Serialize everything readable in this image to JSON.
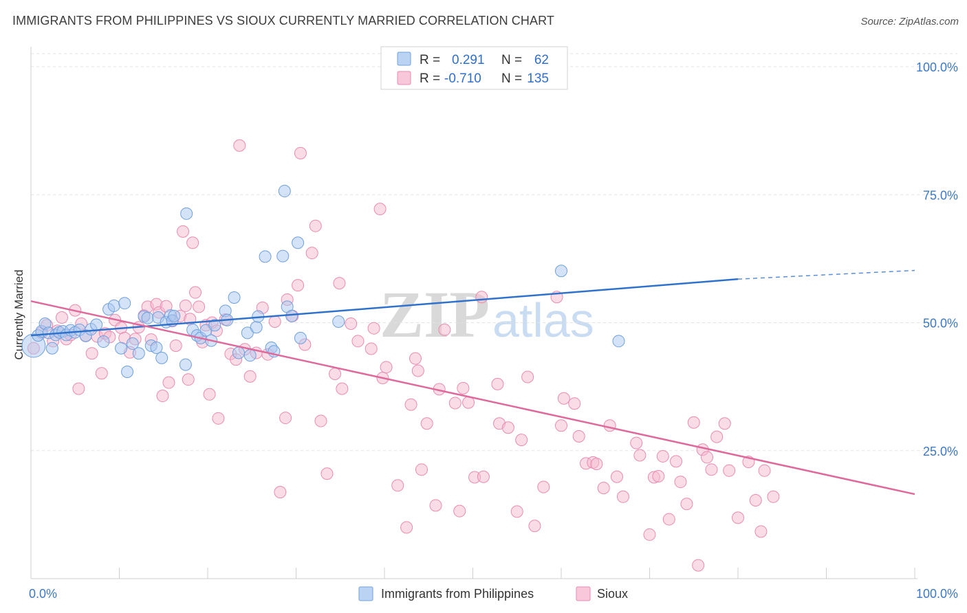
{
  "header": {
    "title": "IMMIGRANTS FROM PHILIPPINES VS SIOUX CURRENTLY MARRIED CORRELATION CHART",
    "source": "Source: ZipAtlas.com"
  },
  "watermark": {
    "zip": "ZIP",
    "atlas": "atlas"
  },
  "legend_top": {
    "rows": [
      {
        "r_label": "R =",
        "r_value": "0.291",
        "n_label": "N =",
        "n_value": "62",
        "color": "#a9c8f0"
      },
      {
        "r_label": "R =",
        "r_value": "-0.710",
        "n_label": "N =",
        "n_value": "135",
        "color": "#f6b9cf"
      }
    ]
  },
  "legend_bottom": {
    "items": [
      {
        "label": "Immigrants from Philippines",
        "color": "#a9c8f0"
      },
      {
        "label": "Sioux",
        "color": "#f6b9cf"
      }
    ]
  },
  "chart_data": {
    "type": "scatter",
    "title": "IMMIGRANTS FROM PHILIPPINES VS SIOUX CURRENTLY MARRIED CORRELATION CHART",
    "xlabel": "",
    "ylabel": "Currently Married",
    "xlim": [
      0,
      100
    ],
    "ylim": [
      0,
      105
    ],
    "x_tick_labels": [
      "0.0%",
      "100.0%"
    ],
    "y_ticks": [
      25,
      50,
      75,
      100
    ],
    "y_tick_labels": [
      "25.0%",
      "50.0%",
      "75.0%",
      "100.0%"
    ],
    "grid": true,
    "legend_position": "top-center",
    "series": [
      {
        "name": "Immigrants from Philippines",
        "color": "#a9c8f0",
        "stroke": "#6fa0de",
        "trend": {
          "x": [
            0,
            80
          ],
          "y": [
            47.5,
            58.5
          ],
          "dashed_to": [
            100,
            60.2
          ],
          "color": "#2f72cc"
        },
        "points": [
          [
            0.3,
            45.5
          ],
          [
            0.8,
            47.5
          ],
          [
            1.2,
            48.3
          ],
          [
            1.6,
            49.8
          ],
          [
            2.0,
            48.0
          ],
          [
            2.4,
            45.0
          ],
          [
            2.8,
            47.6
          ],
          [
            3.2,
            48.1
          ],
          [
            3.6,
            48.3
          ],
          [
            4.0,
            47.6
          ],
          [
            4.5,
            48.5
          ],
          [
            5.0,
            48.1
          ],
          [
            5.5,
            48.6
          ],
          [
            6.2,
            47.4
          ],
          [
            6.8,
            48.7
          ],
          [
            7.4,
            49.6
          ],
          [
            8.2,
            46.3
          ],
          [
            8.8,
            52.6
          ],
          [
            9.4,
            53.3
          ],
          [
            10.2,
            45.0
          ],
          [
            10.6,
            53.8
          ],
          [
            10.9,
            40.4
          ],
          [
            11.5,
            45.9
          ],
          [
            12.2,
            44.0
          ],
          [
            12.8,
            51.2
          ],
          [
            13.2,
            50.9
          ],
          [
            13.6,
            45.5
          ],
          [
            14.2,
            45.1
          ],
          [
            14.8,
            43.1
          ],
          [
            14.4,
            51.0
          ],
          [
            15.3,
            50.1
          ],
          [
            15.8,
            51.4
          ],
          [
            16.0,
            50.4
          ],
          [
            16.2,
            51.3
          ],
          [
            17.5,
            41.8
          ],
          [
            17.6,
            71.3
          ],
          [
            18.3,
            48.6
          ],
          [
            18.8,
            47.5
          ],
          [
            19.2,
            47.0
          ],
          [
            19.8,
            48.5
          ],
          [
            20.4,
            46.5
          ],
          [
            20.8,
            49.5
          ],
          [
            22.0,
            52.3
          ],
          [
            22.2,
            50.5
          ],
          [
            23.0,
            54.9
          ],
          [
            23.5,
            44.1
          ],
          [
            24.5,
            48.0
          ],
          [
            24.8,
            43.6
          ],
          [
            25.5,
            49.1
          ],
          [
            25.7,
            51.2
          ],
          [
            26.5,
            62.9
          ],
          [
            27.2,
            45.1
          ],
          [
            27.5,
            44.4
          ],
          [
            28.5,
            63.0
          ],
          [
            28.7,
            75.7
          ],
          [
            29.0,
            53.1
          ],
          [
            29.5,
            51.3
          ],
          [
            30.2,
            65.6
          ],
          [
            30.5,
            47.0
          ],
          [
            34.8,
            50.2
          ],
          [
            60.0,
            60.1
          ],
          [
            66.5,
            46.4
          ]
        ],
        "big_points": [
          [
            0.3,
            45.5
          ]
        ]
      },
      {
        "name": "Sioux",
        "color": "#f6b9cf",
        "stroke": "#e98bb0",
        "trend": {
          "x": [
            0,
            100
          ],
          "y": [
            54.2,
            16.5
          ],
          "color": "#e0699b"
        },
        "points": [
          [
            0.3,
            45.0
          ],
          [
            1.2,
            48.0
          ],
          [
            1.8,
            49.5
          ],
          [
            2.5,
            46.4
          ],
          [
            3.0,
            48.4
          ],
          [
            3.5,
            51.0
          ],
          [
            4.0,
            46.8
          ],
          [
            4.5,
            47.6
          ],
          [
            5.0,
            52.4
          ],
          [
            5.4,
            37.1
          ],
          [
            5.7,
            49.8
          ],
          [
            6.2,
            47.5
          ],
          [
            6.9,
            44.0
          ],
          [
            7.5,
            47.3
          ],
          [
            8.0,
            40.1
          ],
          [
            8.4,
            47.9
          ],
          [
            8.9,
            47.2
          ],
          [
            9.5,
            50.5
          ],
          [
            10.2,
            49.0
          ],
          [
            10.6,
            47.0
          ],
          [
            11.2,
            44.2
          ],
          [
            11.8,
            46.8
          ],
          [
            12.2,
            49.1
          ],
          [
            12.8,
            51.4
          ],
          [
            13.2,
            53.1
          ],
          [
            13.6,
            46.7
          ],
          [
            14.2,
            53.6
          ],
          [
            14.5,
            52.0
          ],
          [
            14.9,
            35.7
          ],
          [
            15.3,
            53.2
          ],
          [
            15.6,
            38.3
          ],
          [
            16.0,
            50.3
          ],
          [
            16.4,
            45.5
          ],
          [
            16.9,
            51.3
          ],
          [
            17.2,
            67.8
          ],
          [
            17.5,
            53.3
          ],
          [
            17.8,
            38.9
          ],
          [
            18.0,
            50.7
          ],
          [
            18.3,
            65.6
          ],
          [
            18.6,
            55.9
          ],
          [
            19.0,
            53.1
          ],
          [
            19.4,
            46.2
          ],
          [
            19.8,
            49.5
          ],
          [
            20.2,
            36.0
          ],
          [
            20.5,
            50.0
          ],
          [
            21.0,
            48.4
          ],
          [
            21.2,
            31.3
          ],
          [
            22.0,
            50.6
          ],
          [
            22.6,
            43.9
          ],
          [
            23.2,
            42.8
          ],
          [
            23.6,
            84.6
          ],
          [
            24.2,
            44.8
          ],
          [
            24.8,
            39.5
          ],
          [
            25.5,
            44.1
          ],
          [
            26.2,
            52.9
          ],
          [
            26.8,
            43.8
          ],
          [
            27.6,
            50.2
          ],
          [
            28.2,
            16.9
          ],
          [
            28.8,
            31.4
          ],
          [
            29.0,
            54.5
          ],
          [
            29.6,
            51.3
          ],
          [
            30.2,
            57.3
          ],
          [
            30.5,
            83.1
          ],
          [
            31.0,
            45.7
          ],
          [
            31.8,
            63.6
          ],
          [
            32.2,
            68.9
          ],
          [
            32.8,
            30.8
          ],
          [
            33.5,
            20.5
          ],
          [
            34.4,
            40.0
          ],
          [
            34.9,
            57.7
          ],
          [
            35.2,
            37.1
          ],
          [
            36.2,
            49.8
          ],
          [
            37.0,
            46.4
          ],
          [
            38.5,
            44.9
          ],
          [
            38.8,
            48.9
          ],
          [
            39.5,
            72.2
          ],
          [
            39.8,
            39.2
          ],
          [
            40.2,
            41.3
          ],
          [
            41.5,
            18.2
          ],
          [
            42.5,
            10.0
          ],
          [
            43.0,
            34.0
          ],
          [
            43.5,
            43.0
          ],
          [
            43.8,
            40.6
          ],
          [
            44.2,
            21.3
          ],
          [
            44.8,
            30.3
          ],
          [
            45.8,
            14.3
          ],
          [
            46.2,
            37.0
          ],
          [
            46.8,
            48.6
          ],
          [
            48.0,
            34.3
          ],
          [
            48.5,
            13.2
          ],
          [
            48.9,
            37.2
          ],
          [
            49.5,
            34.4
          ],
          [
            50.2,
            19.8
          ],
          [
            51.0,
            55.0
          ],
          [
            51.2,
            19.9
          ],
          [
            52.8,
            38.0
          ],
          [
            53.0,
            30.3
          ],
          [
            54.0,
            29.5
          ],
          [
            55.0,
            13.1
          ],
          [
            55.5,
            27.1
          ],
          [
            56.2,
            39.4
          ],
          [
            57.0,
            10.3
          ],
          [
            58.0,
            17.9
          ],
          [
            59.5,
            55.0
          ],
          [
            60.0,
            29.9
          ],
          [
            60.3,
            35.2
          ],
          [
            61.5,
            34.2
          ],
          [
            62.0,
            27.8
          ],
          [
            62.8,
            22.5
          ],
          [
            63.6,
            22.7
          ],
          [
            64.0,
            22.4
          ],
          [
            64.8,
            17.7
          ],
          [
            65.5,
            29.9
          ],
          [
            66.3,
            19.9
          ],
          [
            67.0,
            16.0
          ],
          [
            68.5,
            26.5
          ],
          [
            68.9,
            24.1
          ],
          [
            70.0,
            8.6
          ],
          [
            70.5,
            19.8
          ],
          [
            71.0,
            20.0
          ],
          [
            71.5,
            23.9
          ],
          [
            72.2,
            11.6
          ],
          [
            73.0,
            22.9
          ],
          [
            73.5,
            18.9
          ],
          [
            74.2,
            14.6
          ],
          [
            75.0,
            30.5
          ],
          [
            75.5,
            2.6
          ],
          [
            76.0,
            25.2
          ],
          [
            76.5,
            23.7
          ],
          [
            77.0,
            21.3
          ],
          [
            77.6,
            27.7
          ],
          [
            78.5,
            30.3
          ],
          [
            79.0,
            21.1
          ],
          [
            80.0,
            11.9
          ],
          [
            81.2,
            22.8
          ],
          [
            82.0,
            15.3
          ],
          [
            82.6,
            9.2
          ],
          [
            83.0,
            21.1
          ],
          [
            84.0,
            16.0
          ]
        ]
      }
    ]
  }
}
